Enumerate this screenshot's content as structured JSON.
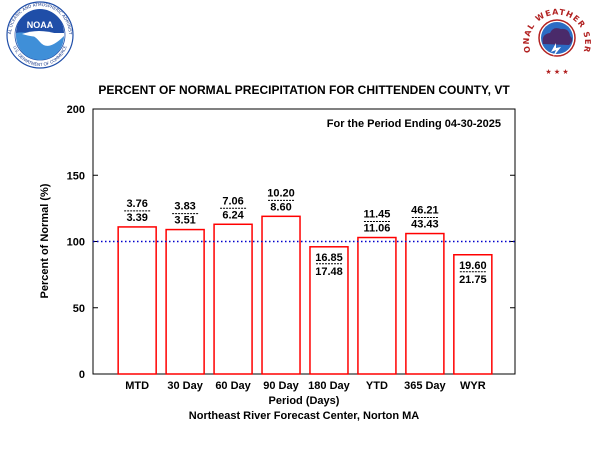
{
  "logos": {
    "left_badge": "NOAA",
    "left_ring_top": "NATIONAL OCEANIC AND ATMOSPHERIC ADMINISTRATION",
    "left_ring_bottom": "U.S. DEPARTMENT OF COMMERCE",
    "right_ring": "NATIONAL WEATHER SERVICE"
  },
  "colors": {
    "bar_outline": "#ff0000",
    "normal_line": "#0000cc",
    "noaa_blue": "#1f4ea8",
    "nws_red": "#b22222"
  },
  "chart_data": {
    "type": "bar",
    "title": "PERCENT OF NORMAL PRECIPITATION FOR CHITTENDEN COUNTY, VT",
    "subtitle": "For the Period Ending 04-30-2025",
    "xlabel": "Period (Days)",
    "ylabel": "Percent of Normal (%)",
    "footer": "Northeast River Forecast Center, Norton MA",
    "ylim": [
      0,
      200
    ],
    "yticks": [
      "0",
      "50",
      "100",
      "150",
      "200"
    ],
    "reference_line": 100,
    "grid": false,
    "categories": [
      "MTD",
      "30 Day",
      "60 Day",
      "90 Day",
      "180 Day",
      "YTD",
      "365 Day",
      "WYR"
    ],
    "values": [
      111,
      109,
      113,
      119,
      96,
      103,
      106,
      90
    ],
    "observed": [
      "3.76",
      "3.83",
      "7.06",
      "10.20",
      "16.85",
      "11.45",
      "46.21",
      "19.60"
    ],
    "normal": [
      "3.39",
      "3.51",
      "6.24",
      "8.60",
      "17.48",
      "11.06",
      "43.43",
      "21.75"
    ]
  }
}
